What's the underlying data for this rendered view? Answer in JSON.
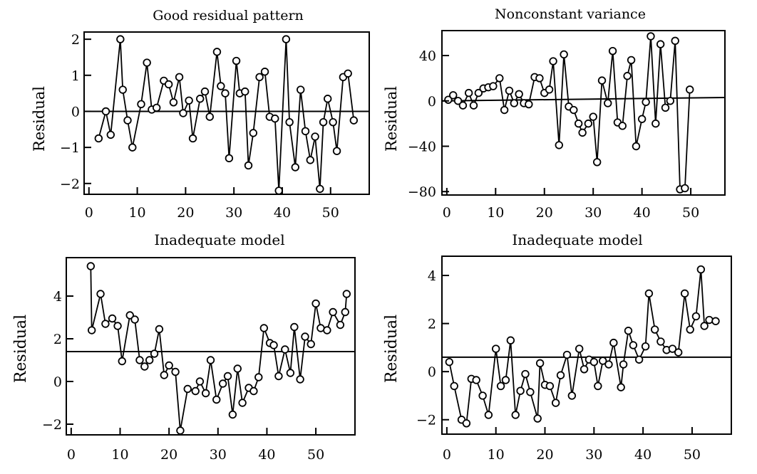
{
  "chart_data": [
    {
      "type": "line",
      "title": "Good residual pattern",
      "xlabel": "",
      "ylabel": "Residual",
      "xlim": [
        -1,
        58
      ],
      "ylim": [
        -2.3,
        2.2
      ],
      "x_ticks": [
        0,
        10,
        20,
        30,
        40,
        50
      ],
      "y_ticks": [
        2,
        1,
        0,
        -1,
        -2
      ],
      "y_tick_labels": [
        "2",
        "1",
        "0",
        "−1",
        "−2"
      ],
      "reference_line": 0,
      "series": [
        {
          "x": [
            2,
            3.5,
            4.5,
            6.5,
            7,
            8,
            9,
            10.8,
            12,
            13,
            14,
            15.5,
            16.5,
            17.5,
            18.7,
            19.5,
            20.7,
            21.5,
            23,
            24,
            25,
            26.5,
            27.3,
            28.2,
            29,
            30.5,
            31.2,
            32.3,
            33,
            34,
            35.3,
            36.4,
            37.4,
            38.5,
            39.3,
            40.8,
            41.5,
            42.7,
            43.8,
            44.8,
            45.8,
            46.8,
            47.8,
            48.5,
            49.4,
            50.5,
            51.3,
            52.6,
            53.6,
            54.8
          ],
          "y": [
            -0.75,
            0,
            -0.65,
            2,
            0.6,
            -0.25,
            -1.0,
            0.2,
            1.35,
            0.05,
            0.1,
            0.85,
            0.75,
            0.25,
            0.95,
            -0.05,
            0.3,
            -0.75,
            0.35,
            0.55,
            -0.15,
            1.65,
            0.7,
            0.5,
            -1.3,
            1.4,
            0.5,
            0.55,
            -1.5,
            -0.6,
            0.95,
            1.1,
            -0.15,
            -0.2,
            -2.2,
            2.0,
            -0.3,
            -1.55,
            0.6,
            -0.55,
            -1.35,
            -0.7,
            -2.15,
            -0.3,
            0.35,
            -0.3,
            -1.1,
            0.95,
            1.05,
            -0.25
          ]
        }
      ]
    },
    {
      "type": "line",
      "title": "Nonconstant variance",
      "xlabel": "",
      "ylabel": "Residual",
      "xlim": [
        -1,
        57
      ],
      "ylim": [
        -83,
        62
      ],
      "x_ticks": [
        0,
        10,
        20,
        30,
        40,
        50
      ],
      "y_ticks": [
        40,
        0,
        -40,
        -80
      ],
      "y_tick_labels": [
        "40",
        "0",
        "−40",
        "−80"
      ],
      "reference_line_from": [
        0,
        0
      ],
      "reference_line_to": [
        57,
        3
      ],
      "series": [
        {
          "x": [
            0.3,
            1.3,
            2.3,
            3.3,
            4.5,
            5.5,
            6.5,
            7.5,
            8.5,
            9.5,
            10.8,
            11.8,
            12.8,
            13.8,
            14.8,
            15.8,
            16.8,
            18,
            19,
            20,
            21,
            21.8,
            23,
            24,
            25,
            26,
            27,
            27.8,
            29,
            30,
            30.8,
            31.8,
            33,
            34,
            35,
            36,
            37,
            37.8,
            38.8,
            40,
            40.8,
            41.8,
            42.8,
            43.8,
            44.8,
            45.8,
            46.8,
            47.8,
            48.8,
            49.8
          ],
          "y": [
            1,
            5,
            0,
            -4,
            7,
            -4,
            7,
            11,
            12,
            13,
            20,
            -8,
            9,
            -2,
            6,
            -2,
            -3,
            21,
            20,
            7,
            10,
            35,
            -39,
            41,
            -5,
            -8,
            -20,
            -28,
            -20,
            -14,
            -54,
            18,
            -2,
            44,
            -19,
            -22,
            22,
            36,
            -40,
            -16,
            -1,
            57,
            -20,
            50,
            -6,
            0,
            53,
            -78,
            -77,
            10
          ]
        }
      ]
    },
    {
      "type": "line",
      "title": "Inadequate model",
      "xlabel": "",
      "ylabel": "Residual",
      "xlim": [
        -1,
        58
      ],
      "ylim": [
        -2.5,
        5.8
      ],
      "x_ticks": [
        0,
        10,
        20,
        30,
        40,
        50
      ],
      "y_ticks": [
        4,
        2,
        0,
        -2
      ],
      "y_tick_labels": [
        "4",
        "2",
        "0",
        "−2"
      ],
      "reference_line": 1.4,
      "series": [
        {
          "x": [
            4,
            4.2,
            6,
            7,
            8.4,
            9.5,
            10.4,
            12,
            13,
            14,
            15,
            16,
            17,
            18,
            19,
            20,
            21.3,
            22.3,
            23.8,
            25.4,
            26.3,
            27.5,
            28.5,
            29.7,
            31,
            32,
            33,
            34,
            35,
            36.3,
            37.3,
            38.3,
            39.4,
            40.6,
            41.4,
            42.4,
            43.7,
            44.8,
            45.6,
            46.8,
            47.8,
            49,
            50,
            51,
            52.3,
            53.5,
            55,
            56,
            56.3
          ],
          "y": [
            5.4,
            2.4,
            4.1,
            2.7,
            2.95,
            2.6,
            0.95,
            3.1,
            2.9,
            1.0,
            0.7,
            1.0,
            1.3,
            2.45,
            0.3,
            0.75,
            0.45,
            -2.3,
            -0.35,
            -0.45,
            0.0,
            -0.55,
            1.0,
            -0.85,
            -0.1,
            0.25,
            -1.55,
            0.6,
            -1.0,
            -0.3,
            -0.45,
            0.2,
            2.5,
            1.8,
            1.7,
            0.25,
            1.5,
            0.4,
            2.55,
            0.1,
            2.1,
            1.75,
            3.65,
            2.5,
            2.4,
            3.25,
            2.65,
            3.25,
            4.1
          ]
        }
      ]
    },
    {
      "type": "line",
      "title": "Inadequate model",
      "xlabel": "",
      "ylabel": "Residual",
      "xlim": [
        -1,
        58
      ],
      "ylim": [
        -2.6,
        4.8
      ],
      "x_ticks": [
        0,
        10,
        20,
        30,
        40,
        50
      ],
      "y_ticks": [
        4,
        2,
        0,
        -2
      ],
      "y_tick_labels": [
        "4",
        "2",
        "0",
        "−2"
      ],
      "reference_line": 0.6,
      "series": [
        {
          "x": [
            0.5,
            1.5,
            3,
            4,
            5,
            6,
            7.3,
            8.5,
            10,
            11,
            12,
            13,
            14,
            15,
            16,
            17,
            18.5,
            19,
            20,
            21,
            22.2,
            23.2,
            24.5,
            25.5,
            27,
            28,
            29,
            30,
            30.8,
            31.8,
            33,
            34,
            35.5,
            36,
            37,
            38,
            39.2,
            40.5,
            41.2,
            42.4,
            43.6,
            44.8,
            46,
            47.2,
            48.5,
            49.6,
            50.8,
            51.8,
            52.5,
            53.5,
            54.8
          ],
          "y": [
            0.4,
            -0.6,
            -2.0,
            -2.15,
            -0.3,
            -0.35,
            -1.0,
            -1.8,
            0.95,
            -0.6,
            -0.35,
            1.3,
            -1.8,
            -0.8,
            -0.1,
            -0.85,
            -1.95,
            0.35,
            -0.55,
            -0.6,
            -1.3,
            -0.15,
            0.7,
            -1.0,
            0.95,
            0.1,
            0.5,
            0.4,
            -0.6,
            0.45,
            0.3,
            1.2,
            -0.65,
            0.3,
            1.7,
            1.1,
            0.5,
            1.05,
            3.25,
            1.75,
            1.25,
            0.9,
            0.95,
            0.8,
            3.25,
            1.75,
            2.3,
            4.25,
            1.9,
            2.15,
            2.1
          ]
        }
      ]
    }
  ]
}
